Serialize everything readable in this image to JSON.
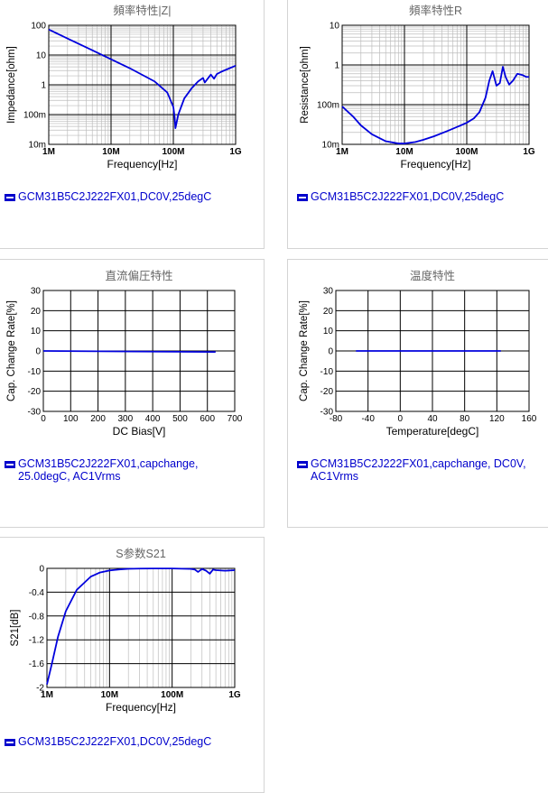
{
  "colors": {
    "series": "#0000dd",
    "grid_major": "#000000",
    "grid_minor": "#bdbdbd",
    "title_text": "#666666",
    "axis_text": "#000000",
    "legend_text": "#0000cc"
  },
  "chart_data": [
    {
      "type": "line",
      "title": "頻率特性|Z|",
      "xlabel": "Frequency[Hz]",
      "ylabel": "Impedance[ohm]",
      "x_scale": "log",
      "y_scale": "log",
      "xlim": [
        1000000,
        1000000000
      ],
      "ylim": [
        0.01,
        100
      ],
      "x_ticks": [
        "1M",
        "10M",
        "100M",
        "1G"
      ],
      "y_ticks": [
        "100",
        "10",
        "1",
        "100m",
        "10m"
      ],
      "grid": true,
      "series": [
        {
          "name": "GCM31B5C2J222FX01,DC0V,25degC",
          "x": [
            1000000.0,
            2000000.0,
            5000000.0,
            10000000.0,
            20000000.0,
            50000000.0,
            80000000.0,
            100000000.0,
            105000000.0,
            108000000.0,
            112000000.0,
            120000000.0,
            150000000.0,
            200000000.0,
            250000000.0,
            300000000.0,
            320000000.0,
            400000000.0,
            450000000.0,
            500000000.0,
            600000000.0,
            800000000.0,
            1000000000.0
          ],
          "values": [
            72,
            36,
            14.5,
            7.2,
            3.6,
            1.3,
            0.55,
            0.18,
            0.08,
            0.035,
            0.05,
            0.1,
            0.35,
            0.8,
            1.3,
            1.7,
            1.2,
            2.2,
            1.6,
            2.3,
            2.8,
            3.6,
            4.4
          ]
        }
      ]
    },
    {
      "type": "line",
      "title": "頻率特性R",
      "xlabel": "Frequency[Hz]",
      "ylabel": "Resistance[ohm]",
      "x_scale": "log",
      "y_scale": "log",
      "xlim": [
        1000000,
        1000000000
      ],
      "ylim": [
        0.01,
        10
      ],
      "x_ticks": [
        "1M",
        "10M",
        "100M",
        "1G"
      ],
      "y_ticks": [
        "10",
        "1",
        "100m",
        "10m"
      ],
      "grid": true,
      "series": [
        {
          "name": "GCM31B5C2J222FX01,DC0V,25degC",
          "x": [
            1000000.0,
            1500000.0,
            2000000.0,
            3000000.0,
            5000000.0,
            8000000.0,
            10000000.0,
            15000000.0,
            20000000.0,
            30000000.0,
            50000000.0,
            80000000.0,
            100000000.0,
            130000000.0,
            160000000.0,
            200000000.0,
            230000000.0,
            260000000.0,
            300000000.0,
            340000000.0,
            380000000.0,
            420000000.0,
            480000000.0,
            550000000.0,
            650000000.0,
            800000000.0,
            900000000.0,
            1000000000.0
          ],
          "values": [
            0.09,
            0.05,
            0.03,
            0.018,
            0.012,
            0.0105,
            0.0105,
            0.0115,
            0.013,
            0.016,
            0.022,
            0.03,
            0.035,
            0.045,
            0.065,
            0.15,
            0.4,
            0.7,
            0.3,
            0.35,
            0.9,
            0.5,
            0.32,
            0.4,
            0.6,
            0.55,
            0.5,
            0.5
          ]
        }
      ]
    },
    {
      "type": "line",
      "title": "直流偏圧特性",
      "xlabel": "DC Bias[V]",
      "ylabel": "Cap. Change Rate[%]",
      "xlim": [
        0,
        700
      ],
      "ylim": [
        -30,
        30
      ],
      "x_ticks": [
        "0",
        "100",
        "200",
        "300",
        "400",
        "500",
        "600",
        "700"
      ],
      "y_ticks": [
        "30",
        "20",
        "10",
        "0",
        "-10",
        "-20",
        "-30"
      ],
      "grid": true,
      "series": [
        {
          "name": "GCM31B5C2J222FX01,capchange, 25.0degC, AC1Vrms",
          "x": [
            0,
            630
          ],
          "values": [
            0,
            -0.5
          ]
        }
      ]
    },
    {
      "type": "line",
      "title": "温度特性",
      "xlabel": "Temperature[degC]",
      "ylabel": "Cap. Change Rate[%]",
      "xlim": [
        -80,
        160
      ],
      "ylim": [
        -30,
        30
      ],
      "x_ticks": [
        "-80",
        "-40",
        "0",
        "40",
        "80",
        "120",
        "160"
      ],
      "y_ticks": [
        "30",
        "20",
        "10",
        "0",
        "-10",
        "-20",
        "-30"
      ],
      "grid": true,
      "series": [
        {
          "name": "GCM31B5C2J222FX01,capchange, DC0V, AC1Vrms",
          "x": [
            -55,
            125
          ],
          "values": [
            0,
            0
          ]
        }
      ]
    },
    {
      "type": "line",
      "title": "S参数S21",
      "xlabel": "Frequency[Hz]",
      "ylabel": "S21[dB]",
      "x_scale": "log",
      "xlim": [
        1000000,
        1000000000
      ],
      "ylim": [
        -2,
        0
      ],
      "x_ticks": [
        "1M",
        "10M",
        "100M",
        "1G"
      ],
      "y_ticks": [
        "0",
        "-0.4",
        "-0.8",
        "-1.2",
        "-1.6",
        "-2"
      ],
      "grid": true,
      "series": [
        {
          "name": "GCM31B5C2J222FX01,DC0V,25degC",
          "x": [
            1000000.0,
            1200000.0,
            1500000.0,
            2000000.0,
            3000000.0,
            5000000.0,
            7000000.0,
            10000000.0,
            15000000.0,
            20000000.0,
            30000000.0,
            50000000.0,
            100000000.0,
            200000000.0,
            230000000.0,
            260000000.0,
            300000000.0,
            350000000.0,
            400000000.0,
            450000000.0,
            500000000.0,
            700000000.0,
            1000000000.0
          ],
          "values": [
            -1.95,
            -1.6,
            -1.15,
            -0.72,
            -0.36,
            -0.14,
            -0.07,
            -0.035,
            -0.016,
            -0.008,
            -0.004,
            -0.002,
            -0.002,
            -0.01,
            -0.02,
            -0.06,
            -0.01,
            -0.04,
            -0.09,
            -0.02,
            -0.03,
            -0.04,
            -0.03
          ]
        }
      ]
    }
  ]
}
